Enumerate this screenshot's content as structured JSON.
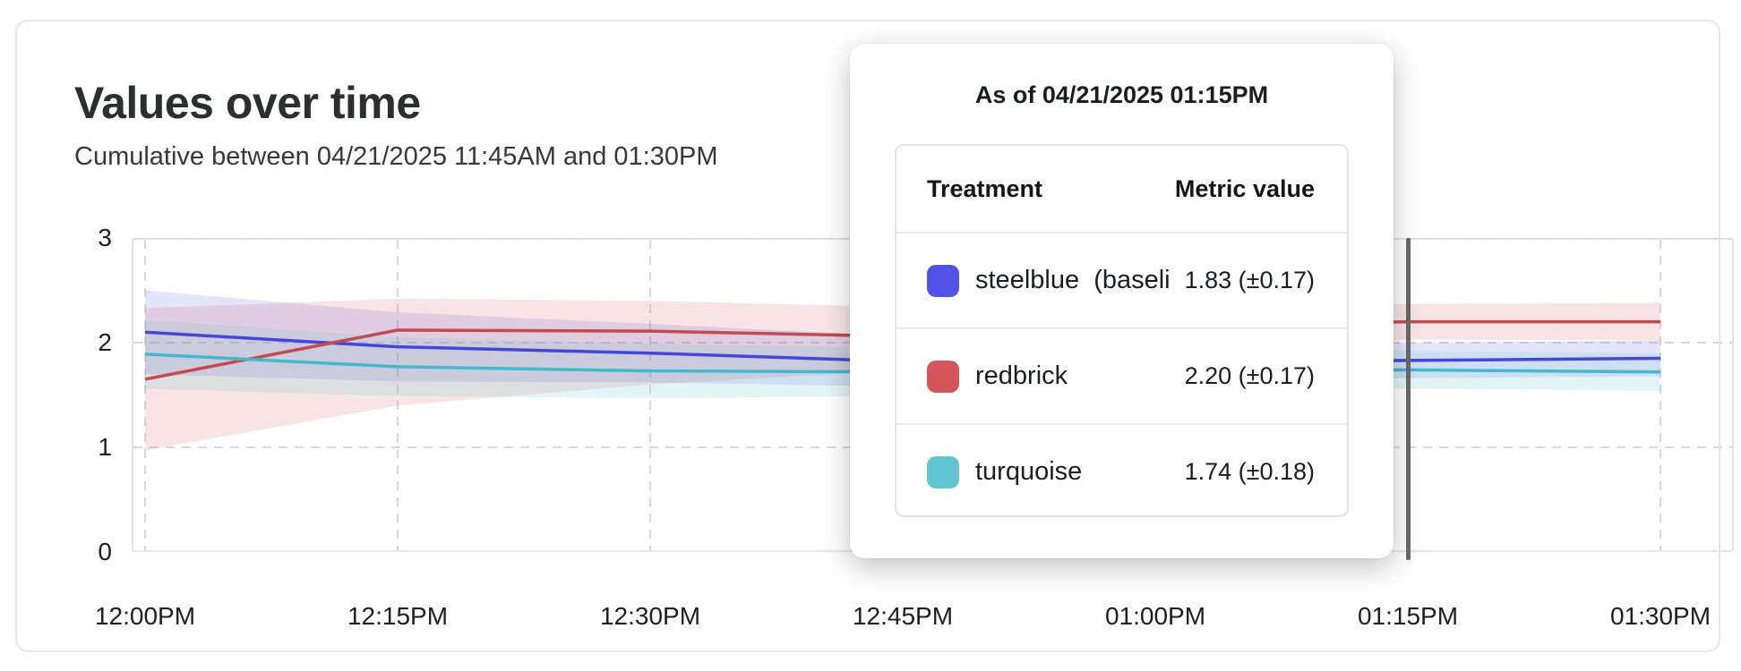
{
  "card": {
    "title": "Values over time",
    "subtitle": "Cumulative between 04/21/2025 11:45AM and 01:30PM"
  },
  "tooltip": {
    "title": "As of 04/21/2025 01:15PM",
    "columns": {
      "treatment": "Treatment",
      "metric": "Metric value"
    },
    "rows": [
      {
        "label": "steelblue  (baseli",
        "value": "1.83 (±0.17)",
        "color": "#5352e8"
      },
      {
        "label": "redbrick",
        "value": "2.20 (±0.17)",
        "color": "#d4555a"
      },
      {
        "label": "turquoise",
        "value": "1.74 (±0.18)",
        "color": "#62c6d2"
      }
    ]
  },
  "chart_data": {
    "type": "line",
    "title": "Values over time",
    "subtitle": "Cumulative between 04/21/2025 11:45AM and 01:30PM",
    "categories": [
      "12:00PM",
      "12:15PM",
      "12:30PM",
      "12:45PM",
      "01:00PM",
      "01:15PM",
      "01:30PM"
    ],
    "series": [
      {
        "name": "steelblue (baseline)",
        "line_color": "#4646d8",
        "band_color": "rgba(90,90,230,0.16)",
        "values": [
          2.1,
          1.96,
          1.9,
          1.82,
          1.81,
          1.83,
          1.85
        ],
        "upper": [
          2.5,
          2.29,
          2.18,
          2.06,
          2.01,
          2.0,
          2.02
        ],
        "lower": [
          1.7,
          1.63,
          1.62,
          1.58,
          1.61,
          1.66,
          1.68
        ]
      },
      {
        "name": "redbrick",
        "line_color": "#c34a50",
        "band_color": "rgba(214,88,93,0.16)",
        "values": [
          1.65,
          2.12,
          2.11,
          2.06,
          2.14,
          2.2,
          2.2
        ],
        "upper": [
          2.33,
          2.42,
          2.4,
          2.34,
          2.36,
          2.37,
          2.38
        ],
        "lower": [
          0.97,
          1.4,
          1.6,
          1.74,
          1.9,
          2.03,
          2.02
        ]
      },
      {
        "name": "turquoise",
        "line_color": "#45b8cc",
        "band_color": "rgba(98,198,210,0.18)",
        "values": [
          1.89,
          1.77,
          1.73,
          1.72,
          1.73,
          1.74,
          1.72
        ],
        "upper": [
          2.22,
          2.05,
          1.99,
          1.95,
          1.93,
          1.92,
          1.9
        ],
        "lower": [
          1.56,
          1.49,
          1.47,
          1.49,
          1.53,
          1.56,
          1.54
        ]
      }
    ],
    "yticks": [
      0,
      1,
      2,
      3
    ],
    "ylim": [
      0,
      3
    ],
    "grid": "dashed",
    "legend_position": "tooltip",
    "hover": {
      "category": "01:15PM",
      "category_index": 5,
      "line_color": "#6a6a6a"
    },
    "colors": {
      "grid": "#d8d8d8",
      "border": "#e4e4e6"
    }
  }
}
